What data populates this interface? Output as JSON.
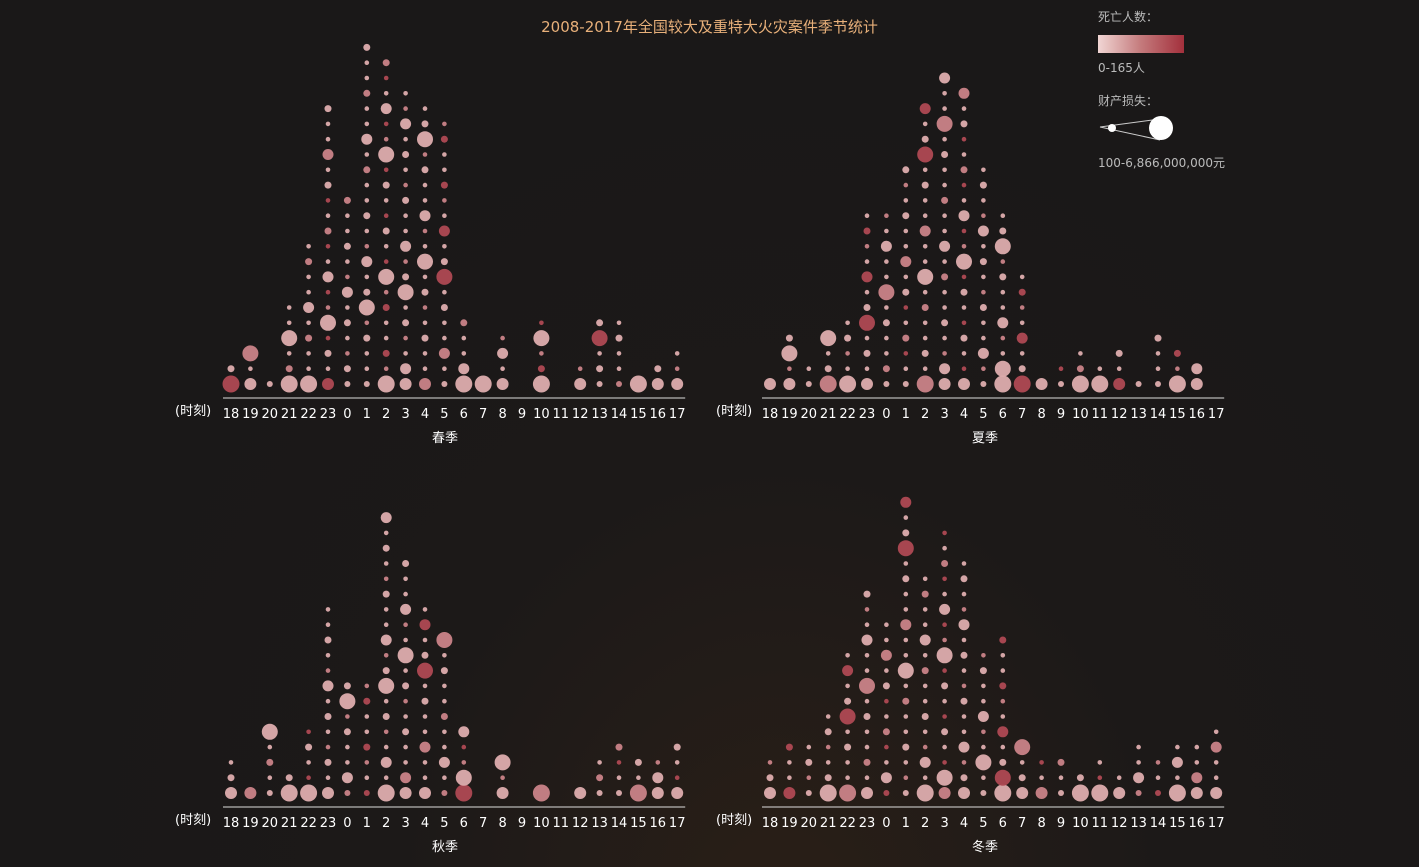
{
  "chart_data": {
    "type": "scatter",
    "title": "2008-2017年全国较大及重特大火灾案件季节统计",
    "xlabel": "(时刻)",
    "hours": [
      "18",
      "19",
      "20",
      "21",
      "22",
      "23",
      "0",
      "1",
      "2",
      "3",
      "4",
      "5",
      "6",
      "7",
      "8",
      "9",
      "10",
      "11",
      "12",
      "13",
      "14",
      "15",
      "16",
      "17"
    ],
    "legend": {
      "death_label": "死亡人数：",
      "death_range": "0-165人",
      "loss_label": "财产损失：",
      "loss_range": "100-6,866,000,000元",
      "color_low": "#f1d6d4",
      "color_high": "#a3303c"
    },
    "colors": {
      "title": "#e8b07a",
      "background": "#1a1818",
      "dot_base": "#c47a7c"
    },
    "panels": [
      {
        "season": "春季",
        "counts": [
          2,
          3,
          1,
          6,
          10,
          19,
          13,
          23,
          22,
          20,
          19,
          18,
          5,
          1,
          4,
          0,
          5,
          0,
          2,
          5,
          5,
          1,
          2,
          3
        ]
      },
      {
        "season": "夏季",
        "counts": [
          1,
          4,
          2,
          4,
          5,
          12,
          12,
          15,
          19,
          21,
          20,
          15,
          12,
          8,
          1,
          2,
          3,
          2,
          3,
          1,
          4,
          3,
          2,
          0
        ]
      },
      {
        "season": "秋季",
        "counts": [
          3,
          1,
          5,
          2,
          5,
          13,
          8,
          8,
          19,
          16,
          13,
          11,
          5,
          0,
          3,
          0,
          1,
          0,
          1,
          3,
          4,
          3,
          3,
          4
        ]
      },
      {
        "season": "冬季",
        "counts": [
          3,
          4,
          4,
          6,
          10,
          14,
          12,
          20,
          15,
          18,
          16,
          10,
          11,
          4,
          3,
          3,
          2,
          3,
          2,
          4,
          3,
          4,
          4,
          5
        ]
      }
    ]
  }
}
